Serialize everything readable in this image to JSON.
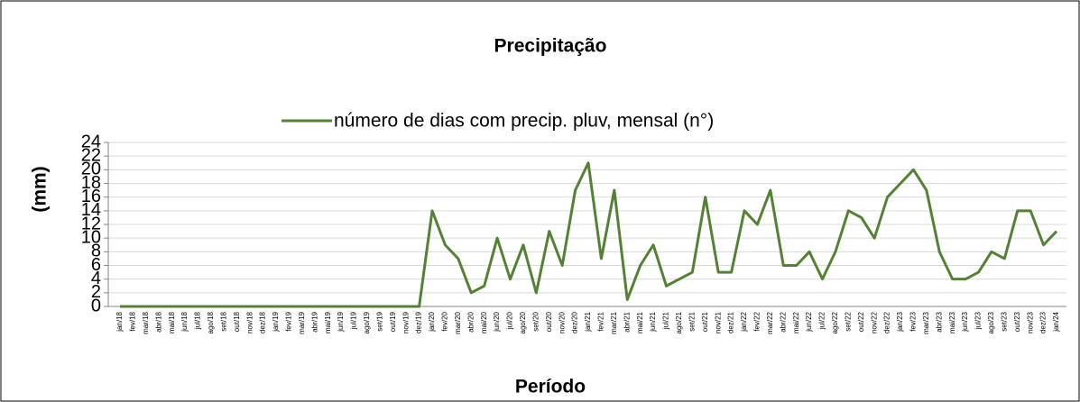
{
  "chart_data": {
    "type": "line",
    "title": "Precipitação",
    "x_label": "Período",
    "y_label": "(mm)",
    "categories": [
      "jan/18",
      "fev/18",
      "mar/18",
      "abr/18",
      "mai/18",
      "jun/18",
      "jul/18",
      "ago/18",
      "set/18",
      "out/18",
      "nov/18",
      "dez/18",
      "jan/19",
      "fev/19",
      "mar/19",
      "abr/19",
      "mai/19",
      "jun/19",
      "jul/19",
      "ago/19",
      "set/19",
      "out/19",
      "nov/19",
      "dez/19",
      "jan/20",
      "fev/20",
      "mar/20",
      "abr/20",
      "mai/20",
      "jun/20",
      "jul/20",
      "ago/20",
      "set/20",
      "out/20",
      "nov/20",
      "dez/20",
      "jan/21",
      "fev/21",
      "mar/21",
      "abr/21",
      "mai/21",
      "jun/21",
      "jul/21",
      "ago/21",
      "set/21",
      "out/21",
      "nov/21",
      "dez/21",
      "jan/22",
      "fev/22",
      "mar/22",
      "abr/22",
      "mai/22",
      "jun/22",
      "jul/22",
      "ago/22",
      "set/22",
      "out/22",
      "nov/22",
      "dez/22",
      "jan/23",
      "fev/23",
      "mar/23",
      "abr/23",
      "mai/23",
      "jun/23",
      "jul/23",
      "ago/23",
      "set/23",
      "out/23",
      "nov/23",
      "dez/23",
      "jan/24"
    ],
    "series": [
      {
        "name": "número de dias com precip. pluv, mensal (n°)",
        "color": "#548235",
        "values": [
          0,
          0,
          0,
          0,
          0,
          0,
          0,
          0,
          0,
          0,
          0,
          0,
          0,
          0,
          0,
          0,
          0,
          0,
          0,
          0,
          0,
          0,
          0,
          0,
          14,
          9,
          7,
          2,
          3,
          10,
          4,
          9,
          2,
          11,
          6,
          17,
          21,
          7,
          17,
          1,
          6,
          9,
          3,
          4,
          5,
          16,
          5,
          5,
          14,
          12,
          17,
          6,
          6,
          8,
          4,
          8,
          14,
          13,
          10,
          16,
          18,
          20,
          17,
          8,
          4,
          4,
          5,
          8,
          7,
          14,
          14,
          9,
          11
        ]
      }
    ],
    "ylim": [
      0,
      24
    ],
    "yticks": [
      0,
      2,
      4,
      6,
      8,
      10,
      12,
      14,
      16,
      18,
      20,
      22,
      24
    ],
    "grid": true,
    "legend": "top"
  }
}
